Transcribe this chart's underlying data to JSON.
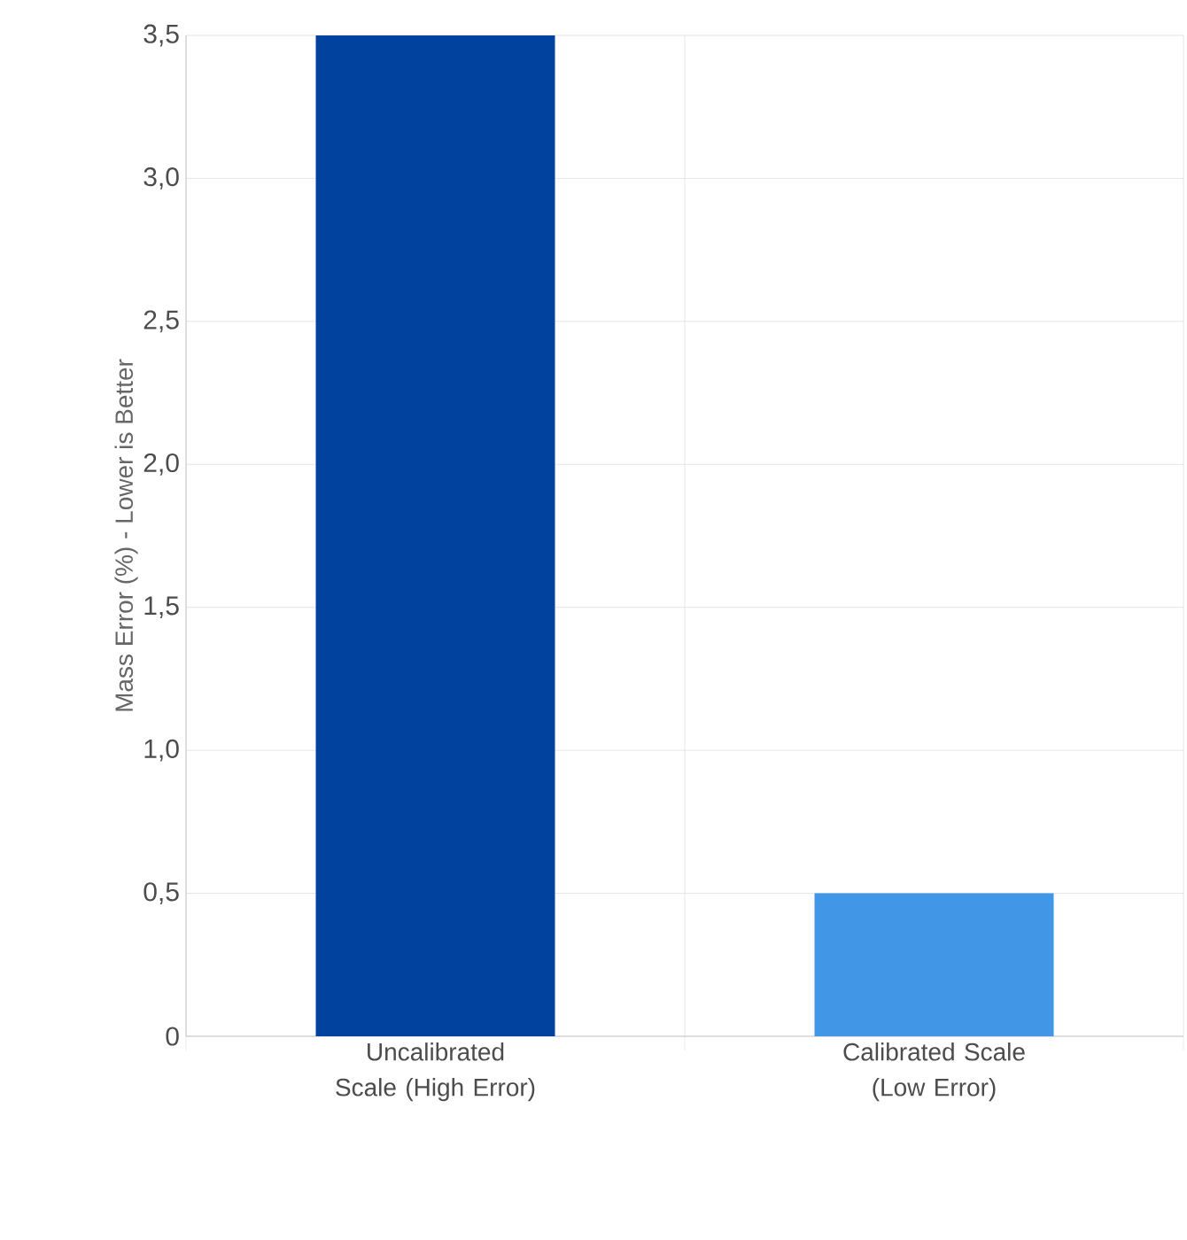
{
  "chart_data": {
    "type": "bar",
    "ylabel": "Mass Error (%) - Lower is Better",
    "categories": [
      "Uncalibrated Scale (High Error)",
      "Calibrated Scale (Low Error)"
    ],
    "values": [
      3.5,
      0.5
    ],
    "colors": [
      "#00429d",
      "#4196e6"
    ],
    "ylim": [
      0,
      3.5
    ],
    "yticks": [
      0,
      {
        "value": 0.5,
        "label": "0,5"
      },
      {
        "value": 1.0,
        "label": "1,0"
      },
      {
        "value": 1.5,
        "label": "1,5"
      },
      {
        "value": 2.0,
        "label": "2,0"
      },
      {
        "value": 2.5,
        "label": "2,5"
      },
      {
        "value": 3.0,
        "label": "3,0"
      },
      {
        "value": 3.5,
        "label": "3,5"
      }
    ],
    "grid": true
  }
}
